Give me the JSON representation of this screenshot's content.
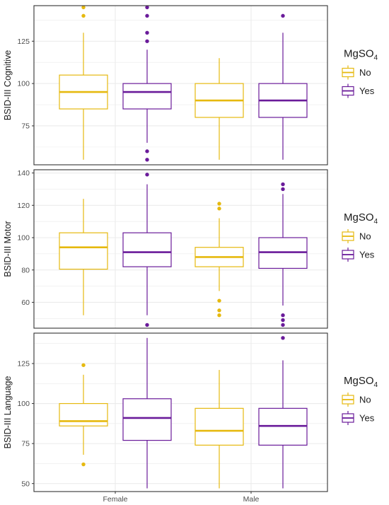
{
  "chart_data": [
    {
      "type": "box",
      "ylabel": "BSID-III Cognitive",
      "ylim": [
        52,
        146
      ],
      "yticks": [
        75,
        100,
        125
      ],
      "categories": [
        "Female",
        "Male"
      ],
      "grid": true,
      "legend": {
        "title": "MgSO",
        "title_sub": "4",
        "position": "right",
        "entries": [
          "No",
          "Yes"
        ]
      },
      "series": [
        {
          "name": "No",
          "color": "#e6b90f",
          "boxes": [
            {
              "category": "Female",
              "whisker_low": 55,
              "q1": 85,
              "median": 95,
              "q3": 105,
              "whisker_high": 130,
              "outliers": [
                140,
                145
              ]
            },
            {
              "category": "Male",
              "whisker_low": 55,
              "q1": 80,
              "median": 90,
              "q3": 100,
              "whisker_high": 115,
              "outliers": []
            }
          ]
        },
        {
          "name": "Yes",
          "color": "#6a1b9a",
          "boxes": [
            {
              "category": "Female",
              "whisker_low": 65,
              "q1": 85,
              "median": 95,
              "q3": 100,
              "whisker_high": 120,
              "outliers": [
                55,
                60,
                125,
                130,
                140,
                145
              ]
            },
            {
              "category": "Male",
              "whisker_low": 55,
              "q1": 80,
              "median": 90,
              "q3": 100,
              "whisker_high": 130,
              "outliers": [
                140
              ]
            }
          ]
        }
      ]
    },
    {
      "type": "box",
      "ylabel": "BSID-III Motor",
      "ylim": [
        44,
        142
      ],
      "yticks": [
        60,
        80,
        100,
        120,
        140
      ],
      "categories": [
        "Female",
        "Male"
      ],
      "grid": true,
      "legend": {
        "title": "MgSO",
        "title_sub": "4",
        "position": "right",
        "entries": [
          "No",
          "Yes"
        ]
      },
      "series": [
        {
          "name": "No",
          "color": "#e6b90f",
          "boxes": [
            {
              "category": "Female",
              "whisker_low": 52,
              "q1": 80.5,
              "median": 94,
              "q3": 103,
              "whisker_high": 124,
              "outliers": []
            },
            {
              "category": "Male",
              "whisker_low": 67,
              "q1": 82,
              "median": 88,
              "q3": 94,
              "whisker_high": 112,
              "outliers": [
                52,
                55,
                61,
                118,
                121
              ]
            }
          ]
        },
        {
          "name": "Yes",
          "color": "#6a1b9a",
          "boxes": [
            {
              "category": "Female",
              "whisker_low": 52,
              "q1": 82,
              "median": 91,
              "q3": 103,
              "whisker_high": 133,
              "outliers": [
                46,
                139
              ]
            },
            {
              "category": "Male",
              "whisker_low": 58,
              "q1": 81,
              "median": 91,
              "q3": 100,
              "whisker_high": 127,
              "outliers": [
                46,
                49,
                52,
                130,
                133
              ]
            }
          ]
        }
      ]
    },
    {
      "type": "box",
      "ylabel": "BSID-III Language",
      "ylim": [
        45,
        144
      ],
      "yticks": [
        50,
        75,
        100,
        125
      ],
      "categories": [
        "Female",
        "Male"
      ],
      "grid": true,
      "legend": {
        "title": "MgSO",
        "title_sub": "4",
        "position": "right",
        "entries": [
          "No",
          "Yes"
        ]
      },
      "series": [
        {
          "name": "No",
          "color": "#e6b90f",
          "boxes": [
            {
              "category": "Female",
              "whisker_low": 68,
              "q1": 86,
              "median": 89,
              "q3": 100,
              "whisker_high": 118,
              "outliers": [
                62,
                124
              ]
            },
            {
              "category": "Male",
              "whisker_low": 47,
              "q1": 74,
              "median": 83,
              "q3": 97,
              "whisker_high": 121,
              "outliers": []
            }
          ]
        },
        {
          "name": "Yes",
          "color": "#6a1b9a",
          "boxes": [
            {
              "category": "Female",
              "whisker_low": 47,
              "q1": 77,
              "median": 91,
              "q3": 103,
              "whisker_high": 141,
              "outliers": []
            },
            {
              "category": "Male",
              "whisker_low": 47,
              "q1": 74,
              "median": 86,
              "q3": 97,
              "whisker_high": 127,
              "outliers": [
                141
              ]
            }
          ]
        }
      ]
    }
  ]
}
